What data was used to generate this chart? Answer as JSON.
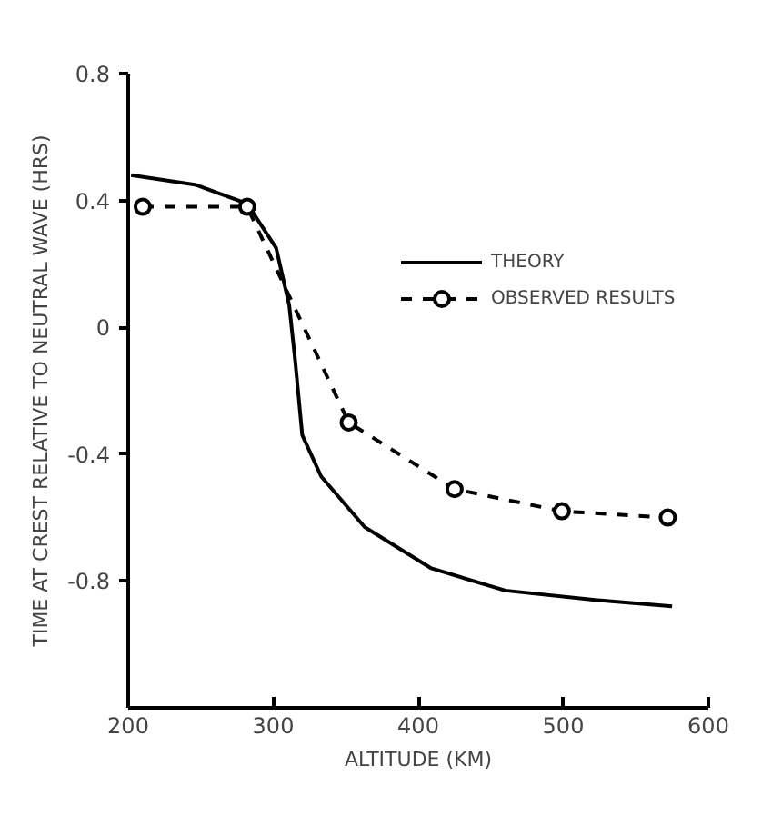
{
  "chart_data": {
    "type": "line",
    "xlabel": "ALTITUDE (KM)",
    "ylabel": "TIME AT CREST RELATIVE TO NEUTRAL WAVE (HRS)",
    "xlim": [
      200,
      600
    ],
    "ylim": [
      -1.2,
      0.8
    ],
    "xticks": [
      200,
      300,
      400,
      500,
      600
    ],
    "yticks": [
      -0.8,
      -0.4,
      0,
      0.4,
      0.8
    ],
    "grid": false,
    "legend": "top right",
    "series": [
      {
        "name": "THEORY",
        "color": "#000000",
        "line_style": "solid",
        "marker": "none",
        "x": [
          202,
          246,
          282,
          302,
          311,
          315,
          320,
          333,
          363,
          409,
          460,
          522,
          575
        ],
        "values": [
          0.48,
          0.45,
          0.39,
          0.25,
          0.07,
          -0.1,
          -0.34,
          -0.47,
          -0.63,
          -0.76,
          -0.83,
          -0.86,
          -0.88
        ]
      },
      {
        "name": "OBSERVED RESULTS",
        "color": "#000000",
        "line_style": "dashed",
        "marker": "circle",
        "x": [
          210,
          282,
          352,
          425,
          499,
          572
        ],
        "values": [
          0.38,
          0.38,
          -0.3,
          -0.51,
          -0.58,
          -0.6
        ]
      }
    ]
  }
}
